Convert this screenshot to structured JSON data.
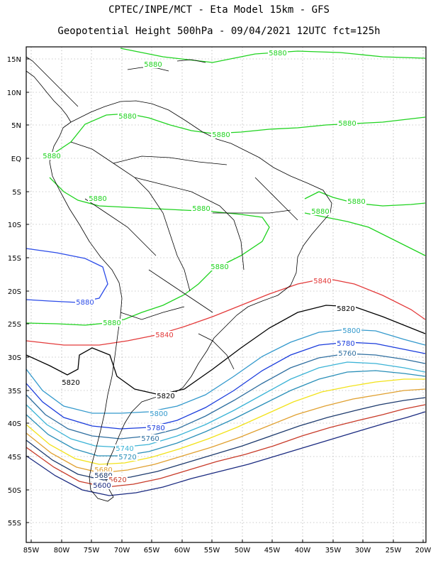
{
  "title_line1": "CPTEC/INPE/MCT -  Eta Model 15km - GFS",
  "title_line2": "Geopotential Height 500hPa - 09/04/2021 12UTC fct=125h",
  "lat_labels": [
    "15N",
    "10N",
    "5N",
    "EQ",
    "5S",
    "10S",
    "15S",
    "20S",
    "25S",
    "30S",
    "35S",
    "40S",
    "45S",
    "50S",
    "55S"
  ],
  "lon_labels": [
    "85W",
    "80W",
    "75W",
    "70W",
    "65W",
    "60W",
    "55W",
    "50W",
    "45W",
    "40W",
    "35W",
    "30W",
    "25W",
    "20W"
  ],
  "colors": {
    "c5880": "#1fd31f",
    "c5860": "#2b4be8",
    "c5840": "#e33a3a",
    "c5820": "#000000",
    "c5800": "#3399cc",
    "c5780": "#1a3cdc",
    "c5760": "#2f6fa0",
    "c5740": "#3bb3d6",
    "c5720": "#2a8fb8",
    "c5700": "#f2e21a",
    "c5680": "#e0a030",
    "c5660": "#1e3b6e",
    "c5640": "#c83a28",
    "c5620": "#1a2a80",
    "coast": "#000000",
    "grid": "#9a9a9a"
  },
  "contour_labels": [
    {
      "text": "5880",
      "color": "c5880"
    },
    {
      "text": "5880",
      "color": "c5880"
    },
    {
      "text": "5880",
      "color": "c5880"
    },
    {
      "text": "5880",
      "color": "c5880"
    },
    {
      "text": "5880",
      "color": "c5880"
    },
    {
      "text": "5880",
      "color": "c5880"
    },
    {
      "text": "5880",
      "color": "c5880"
    },
    {
      "text": "5880",
      "color": "c5880"
    },
    {
      "text": "5880",
      "color": "c5880"
    },
    {
      "text": "5880",
      "color": "c5880"
    },
    {
      "text": "5880",
      "color": "c5880"
    },
    {
      "text": "5880",
      "color": "c5880"
    },
    {
      "text": "5880",
      "color": "c5860"
    },
    {
      "text": "5840",
      "color": "c5840"
    },
    {
      "text": "5840",
      "color": "c5840"
    },
    {
      "text": "5820",
      "color": "c5820"
    },
    {
      "text": "5820",
      "color": "c5820"
    },
    {
      "text": "5820",
      "color": "c5820"
    },
    {
      "text": "5800",
      "color": "c5800"
    },
    {
      "text": "5800",
      "color": "c5800"
    },
    {
      "text": "5780",
      "color": "c5780"
    },
    {
      "text": "5780",
      "color": "c5780"
    },
    {
      "text": "5760",
      "color": "c5760"
    },
    {
      "text": "5760",
      "color": "c5760"
    },
    {
      "text": "5740",
      "color": "c5740"
    },
    {
      "text": "5720",
      "color": "c5720"
    },
    {
      "text": "5680",
      "color": "c5680"
    },
    {
      "text": "5680",
      "color": "c5660"
    },
    {
      "text": "5620",
      "color": "c5640"
    },
    {
      "text": "5600",
      "color": "c5620"
    }
  ]
}
